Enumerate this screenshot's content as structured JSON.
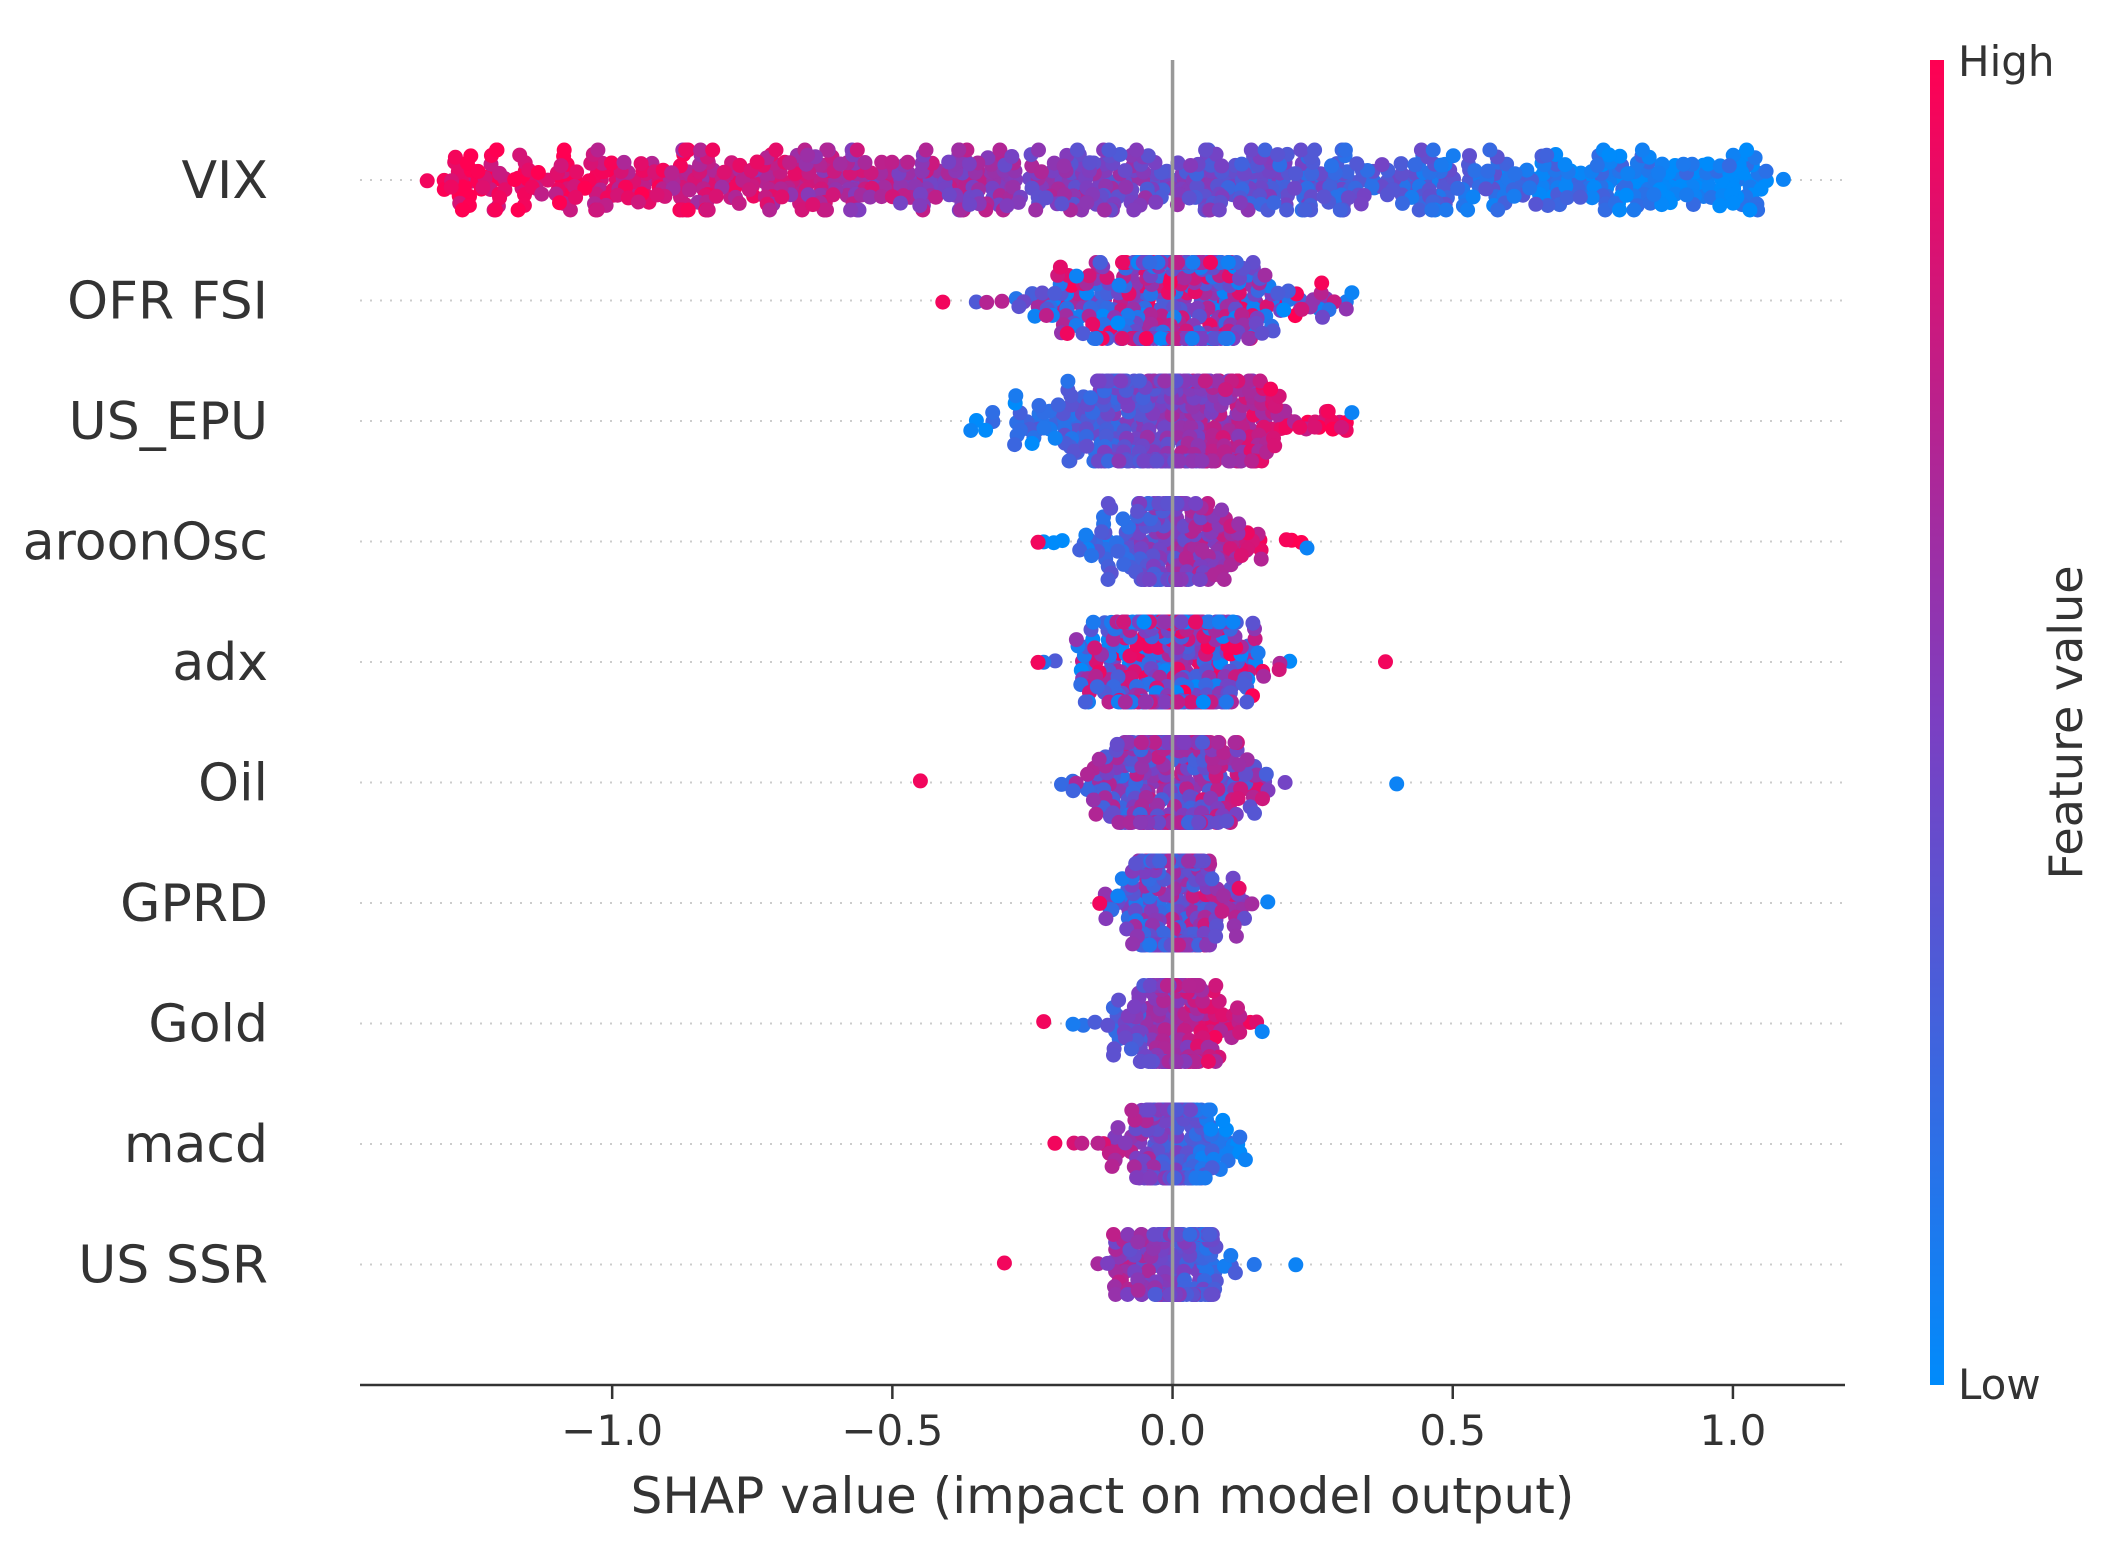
{
  "chart_data": {
    "type": "scatter",
    "subtype": "shap-beeswarm",
    "xlabel": "SHAP value (impact on model output)",
    "xlim": [
      -1.45,
      1.2
    ],
    "xticks": [
      -1.0,
      -0.5,
      0.0,
      0.5,
      1.0
    ],
    "xtick_labels": [
      "−1.0",
      "−0.5",
      "0.0",
      "0.5",
      "1.0"
    ],
    "features": [
      {
        "name": "VIX",
        "range": [
          -1.33,
          1.09
        ],
        "spread": 0.38
      },
      {
        "name": "OFR FSI",
        "range": [
          -0.41,
          0.32
        ],
        "spread": 0.42
      },
      {
        "name": "US_EPU",
        "range": [
          -0.36,
          0.32
        ],
        "spread": 0.42
      },
      {
        "name": "aroonOsc",
        "range": [
          -0.24,
          0.24
        ],
        "spread": 0.42
      },
      {
        "name": "adx",
        "range": [
          -0.24,
          0.38
        ],
        "spread": 0.42
      },
      {
        "name": "Oil",
        "range": [
          -0.45,
          0.4
        ],
        "spread": 0.4
      },
      {
        "name": "GPRD",
        "range": [
          -0.13,
          0.17
        ],
        "spread": 0.42
      },
      {
        "name": "Gold",
        "range": [
          -0.23,
          0.16
        ],
        "spread": 0.42
      },
      {
        "name": "macd",
        "range": [
          -0.21,
          0.13
        ],
        "spread": 0.36
      },
      {
        "name": "US SSR",
        "range": [
          -0.3,
          0.22
        ],
        "spread": 0.36
      }
    ],
    "colorbar": {
      "label": "Feature value",
      "high_label": "High",
      "low_label": "Low",
      "high_color": "#ff0052",
      "mid_color": "#7b3fc2",
      "low_color": "#008bfb"
    },
    "zero_line_color": "#999999"
  }
}
